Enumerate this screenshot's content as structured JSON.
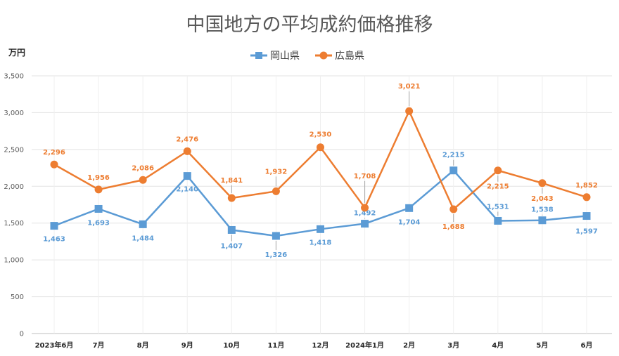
{
  "chart_data": {
    "type": "line",
    "title": "中国地方の平均成約価格推移",
    "ylabel": "万円",
    "xlabel": "",
    "ylim": [
      0,
      3500
    ],
    "yticks": [
      "0",
      "500",
      "1,000",
      "1,500",
      "2,000",
      "2,500",
      "3,000",
      "3,500"
    ],
    "ytick_values": [
      0,
      500,
      1000,
      1500,
      2000,
      2500,
      3000,
      3500
    ],
    "categories": [
      "2023年6月",
      "7月",
      "8月",
      "9月",
      "10月",
      "11月",
      "12月",
      "2024年1月",
      "2月",
      "3月",
      "4月",
      "5月",
      "6月"
    ],
    "grid": true,
    "legend_position": "top",
    "series": [
      {
        "name": "岡山県",
        "color": "#5B9BD5",
        "marker": "square",
        "values": [
          1463,
          1693,
          1484,
          2140,
          1407,
          1326,
          1418,
          1492,
          1704,
          2215,
          1531,
          1538,
          1597
        ],
        "labels": [
          "1,463",
          "1,693",
          "1,484",
          "2,140",
          "1,407",
          "1,326",
          "1,418",
          "1,492",
          "1,704",
          "2,215",
          "1,531",
          "1,538",
          "1,597"
        ]
      },
      {
        "name": "広島県",
        "color": "#ED7D31",
        "marker": "circle",
        "values": [
          2296,
          1956,
          2086,
          2476,
          1841,
          1932,
          2530,
          1708,
          3021,
          1688,
          2215,
          2043,
          1852
        ],
        "labels": [
          "2,296",
          "1,956",
          "2,086",
          "2,476",
          "1,841",
          "1,932",
          "2,530",
          "1,708",
          "3,021",
          "1,688",
          "2,215",
          "2,043",
          "1,852"
        ]
      }
    ]
  }
}
